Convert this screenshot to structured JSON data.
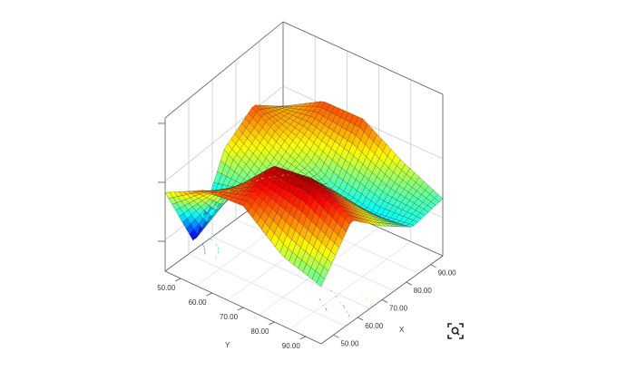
{
  "chart_data": {
    "type": "surface3d",
    "title": "",
    "xlabel": "X",
    "ylabel": "Y",
    "zlabel": "",
    "x_ticks": [
      "50.00",
      "60.00",
      "70.00",
      "80.00",
      "90.00"
    ],
    "y_ticks": [
      "50.00",
      "60.00",
      "70.00",
      "80.00",
      "90.00"
    ],
    "xlim": [
      45,
      95
    ],
    "ylim": [
      45,
      95
    ],
    "z_tick_count": 3,
    "colormap": "jet",
    "contour_projection": "floor",
    "grid": true,
    "surface_samples": {
      "grid_size": 5,
      "x": [
        45,
        57.5,
        70,
        82.5,
        95
      ],
      "y": [
        45,
        57.5,
        70,
        82.5,
        95
      ],
      "z_relative": [
        [
          0.62,
          0.05,
          0.62,
          0.8,
          0.62
        ],
        [
          0.78,
          0.62,
          0.42,
          0.62,
          0.8
        ],
        [
          0.8,
          0.95,
          0.62,
          0.42,
          0.8
        ],
        [
          0.55,
          0.99,
          0.68,
          0.35,
          0.6
        ],
        [
          0.45,
          0.8,
          0.58,
          0.4,
          0.45
        ]
      ]
    }
  },
  "toolbar": {
    "zoom_icon": "zoom-icon"
  }
}
